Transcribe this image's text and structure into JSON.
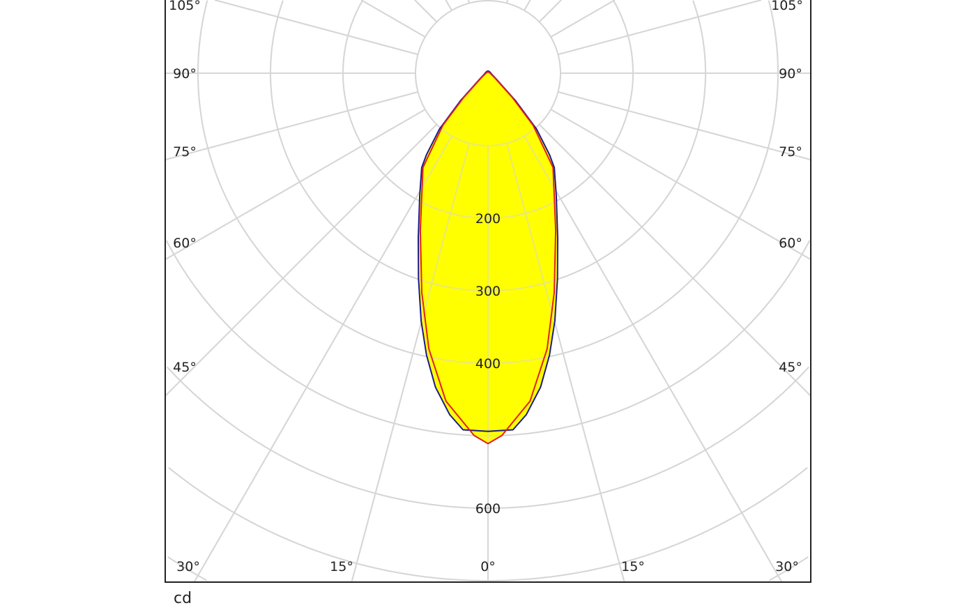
{
  "chart_data": {
    "type": "polar",
    "unit_label": "cd",
    "radial_range": [
      0,
      850
    ],
    "radial_rings": [
      100,
      200,
      300,
      400,
      500,
      600,
      700,
      800
    ],
    "radial_tick_labels": [
      "200",
      "300",
      "400",
      "600"
    ],
    "radial_tick_values": [
      200,
      300,
      400,
      600
    ],
    "angle_tick_labels": [
      "105°",
      "90°",
      "75°",
      "60°",
      "45°",
      "30°",
      "15°",
      "0°",
      "15°",
      "30°",
      "45°",
      "60°",
      "75°",
      "90°",
      "105°"
    ],
    "grid": true,
    "fill_color": "#ffff00",
    "series": [
      {
        "color": "#1a1a8c",
        "symmetric": true,
        "points": [
          [
            0,
            494
          ],
          [
            4,
            493
          ],
          [
            6.4,
            474
          ],
          [
            9.5,
            439
          ],
          [
            12.3,
            398
          ],
          [
            15.1,
            354
          ],
          [
            18.7,
            299
          ],
          [
            23,
            246
          ],
          [
            29.2,
            193
          ],
          [
            35.1,
            159
          ],
          [
            37,
            141
          ],
          [
            41,
            102
          ],
          [
            45,
            54
          ],
          [
            55,
            14
          ],
          [
            70,
            6
          ],
          [
            90,
            4
          ],
          [
            120,
            3
          ],
          [
            160,
            3
          ],
          [
            180,
            3
          ]
        ]
      },
      {
        "color": "#e02020",
        "symmetric": true,
        "points": [
          [
            0,
            511
          ],
          [
            2.2,
            500
          ],
          [
            7.3,
            456
          ],
          [
            12.1,
            389
          ],
          [
            16.8,
            316
          ],
          [
            23.3,
            236
          ],
          [
            34.6,
            158
          ],
          [
            40.9,
            95
          ],
          [
            45,
            48
          ],
          [
            55,
            12
          ],
          [
            70,
            5
          ],
          [
            90,
            3
          ],
          [
            180,
            2
          ]
        ]
      }
    ]
  }
}
